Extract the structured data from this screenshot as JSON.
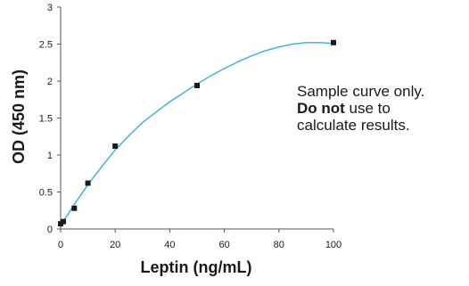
{
  "chart_data": {
    "type": "scatter",
    "title": "",
    "xlabel": "Leptin (ng/mL)",
    "ylabel": "OD (450 nm)",
    "xlim": [
      0,
      100
    ],
    "ylim": [
      0,
      3
    ],
    "x_ticks": [
      "0",
      "20",
      "40",
      "60",
      "80",
      "100"
    ],
    "y_ticks": [
      "0",
      "0.5",
      "1",
      "1.5",
      "2",
      "2.5",
      "3"
    ],
    "grid": false,
    "marker_color": "#1a1a1a",
    "curve_color": "#3aaed8",
    "points": [
      {
        "x": 0,
        "y": 0.07
      },
      {
        "x": 1,
        "y": 0.1
      },
      {
        "x": 5,
        "y": 0.28
      },
      {
        "x": 10,
        "y": 0.62
      },
      {
        "x": 20,
        "y": 1.12
      },
      {
        "x": 50,
        "y": 1.94
      },
      {
        "x": 100,
        "y": 2.52
      }
    ],
    "fit_curve": [
      {
        "x": 0,
        "y": 0.07
      },
      {
        "x": 2,
        "y": 0.16
      },
      {
        "x": 5,
        "y": 0.33
      },
      {
        "x": 10,
        "y": 0.6
      },
      {
        "x": 15,
        "y": 0.84
      },
      {
        "x": 20,
        "y": 1.07
      },
      {
        "x": 25,
        "y": 1.26
      },
      {
        "x": 30,
        "y": 1.44
      },
      {
        "x": 35,
        "y": 1.58
      },
      {
        "x": 40,
        "y": 1.72
      },
      {
        "x": 45,
        "y": 1.84
      },
      {
        "x": 50,
        "y": 1.96
      },
      {
        "x": 55,
        "y": 2.07
      },
      {
        "x": 60,
        "y": 2.17
      },
      {
        "x": 65,
        "y": 2.26
      },
      {
        "x": 70,
        "y": 2.34
      },
      {
        "x": 75,
        "y": 2.41
      },
      {
        "x": 80,
        "y": 2.46
      },
      {
        "x": 85,
        "y": 2.5
      },
      {
        "x": 90,
        "y": 2.52
      },
      {
        "x": 95,
        "y": 2.52
      },
      {
        "x": 100,
        "y": 2.51
      }
    ]
  },
  "note": {
    "line1": "Sample curve only.",
    "line2_bold": "Do not",
    "line2_rest": " use to",
    "line3": "calculate results."
  }
}
